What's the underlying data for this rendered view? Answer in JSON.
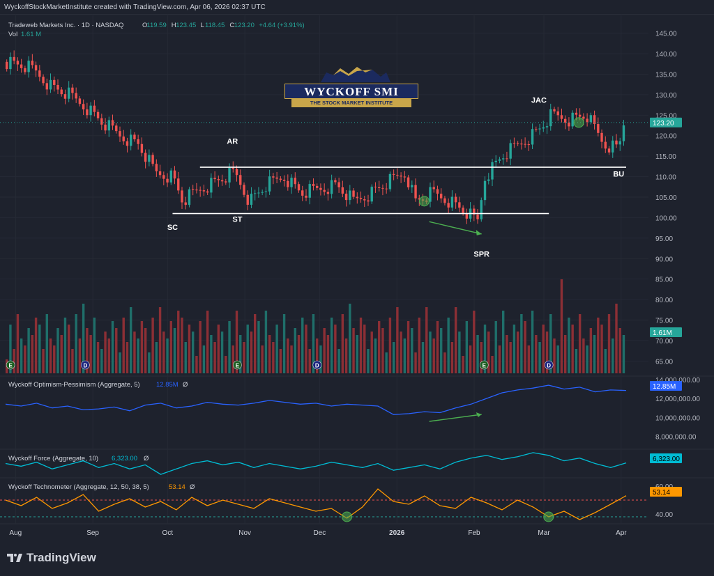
{
  "header": {
    "caption": "WyckoffStockMarketInstitute created with TradingView.com, Apr 06, 2026 02:37 UTC",
    "legend_name": "Tradeweb Markets Inc. · 1D · NASDAQ",
    "ohlc_o_label": "O",
    "ohlc_o": "119.59",
    "ohlc_h_label": "H",
    "ohlc_h": "123.45",
    "ohlc_l_label": "L",
    "ohlc_l": "118.45",
    "ohlc_c_label": "C",
    "ohlc_c": "123.20",
    "change": "+4.64 (+3.91%)",
    "vol_label": "Vol",
    "vol_value": "1.61 M"
  },
  "logo": {
    "title": "WYCKOFF SMI",
    "subtitle": "THE STOCK MARKET INSTITUTE"
  },
  "brand": {
    "name": "TradingView"
  },
  "colors": {
    "background": "#1e222d",
    "grid": "#2a2e39",
    "up": "#26a69a",
    "down": "#ef5350",
    "vol_up": "#1f6f6a",
    "vol_down": "#8c2f35",
    "op_line": "#2962ff",
    "force_line": "#00bcd4",
    "techno_line": "#ff9800",
    "annotation_arrow": "#4caf50",
    "text": "#d1d4dc"
  },
  "chart_data": [
    {
      "type": "candlestick",
      "title": "Tradeweb Markets Inc. · 1D · NASDAQ",
      "ylim": [
        62,
        148
      ],
      "yticks": [
        "145.00",
        "140.00",
        "135.00",
        "130.00",
        "125.00",
        "120.00",
        "115.00",
        "110.00",
        "105.00",
        "100.00",
        "95.00",
        "90.00",
        "85.00",
        "80.00",
        "75.00",
        "70.00",
        "65.00"
      ],
      "last_price_label": "123.20",
      "xticks": [
        "Aug",
        "Sep",
        "Oct",
        "Nov",
        "Dec",
        "2026",
        "Feb",
        "Mar",
        "Apr"
      ],
      "close_path_points": [
        {
          "date": "2025-07-28",
          "close": 138
        },
        {
          "date": "2025-08-04",
          "close": 137
        },
        {
          "date": "2025-08-08",
          "close": 136
        },
        {
          "date": "2025-08-15",
          "close": 132
        },
        {
          "date": "2025-08-22",
          "close": 130
        },
        {
          "date": "2025-08-29",
          "close": 127
        },
        {
          "date": "2025-09-05",
          "close": 123
        },
        {
          "date": "2025-09-12",
          "close": 120
        },
        {
          "date": "2025-09-19",
          "close": 118
        },
        {
          "date": "2025-09-26",
          "close": 111
        },
        {
          "date": "2025-10-03",
          "close": 110
        },
        {
          "date": "2025-10-07",
          "close": 104
        },
        {
          "date": "2025-10-14",
          "close": 107
        },
        {
          "date": "2025-10-21",
          "close": 109
        },
        {
          "date": "2025-10-28",
          "close": 111
        },
        {
          "date": "2025-11-03",
          "close": 104
        },
        {
          "date": "2025-11-10",
          "close": 108
        },
        {
          "date": "2025-11-17",
          "close": 110
        },
        {
          "date": "2025-11-24",
          "close": 106
        },
        {
          "date": "2025-12-01",
          "close": 107
        },
        {
          "date": "2025-12-08",
          "close": 108
        },
        {
          "date": "2025-12-15",
          "close": 104
        },
        {
          "date": "2025-12-22",
          "close": 106
        },
        {
          "date": "2025-12-30",
          "close": 109
        },
        {
          "date": "2026-01-05",
          "close": 111
        },
        {
          "date": "2026-01-09",
          "close": 104
        },
        {
          "date": "2026-01-16",
          "close": 106
        },
        {
          "date": "2026-01-23",
          "close": 104
        },
        {
          "date": "2026-01-30",
          "close": 101
        },
        {
          "date": "2026-02-03",
          "close": 99
        },
        {
          "date": "2026-02-06",
          "close": 110
        },
        {
          "date": "2026-02-13",
          "close": 115
        },
        {
          "date": "2026-02-20",
          "close": 118
        },
        {
          "date": "2026-02-27",
          "close": 121
        },
        {
          "date": "2026-03-05",
          "close": 125
        },
        {
          "date": "2026-03-12",
          "close": 124
        },
        {
          "date": "2026-03-19",
          "close": 125
        },
        {
          "date": "2026-03-26",
          "close": 118
        },
        {
          "date": "2026-04-01",
          "close": 117
        },
        {
          "date": "2026-04-03",
          "close": 123.2
        }
      ],
      "lines": [
        {
          "name": "resistance",
          "value": 112.3,
          "from": "2025-10-14",
          "to": "2026-04-03"
        },
        {
          "name": "support",
          "value": 101.0,
          "from": "2025-10-03",
          "to": "2026-03-03"
        }
      ],
      "annotations": [
        {
          "text": "AR",
          "date": "2025-10-27",
          "value": 118
        },
        {
          "text": "SC",
          "date": "2025-10-03",
          "value": 97
        },
        {
          "text": "ST",
          "date": "2025-10-29",
          "value": 99
        },
        {
          "text": "JAC",
          "date": "2026-02-27",
          "value": 128
        },
        {
          "text": "BU",
          "date": "2026-03-31",
          "value": 110
        },
        {
          "text": "SPR",
          "date": "2026-02-04",
          "value": 90.5
        }
      ],
      "markers": [
        {
          "date": "2026-01-12",
          "value": 104
        },
        {
          "date": "2026-03-15",
          "value": 123.2
        }
      ],
      "volume": {
        "label": "Vol",
        "last_label": "1.61M",
        "event_badges": [
          {
            "text": "E",
            "date": "2025-07-30"
          },
          {
            "text": "D",
            "date": "2025-08-29"
          },
          {
            "text": "E",
            "date": "2025-10-29"
          },
          {
            "text": "D",
            "date": "2025-11-30"
          },
          {
            "text": "E",
            "date": "2026-02-05"
          },
          {
            "text": "D",
            "date": "2026-03-03"
          }
        ]
      }
    },
    {
      "type": "line",
      "title": "Wyckoff Optimism-Pessimism (Aggregate, 5)",
      "value_label": "12.85M",
      "symbol": "Ø",
      "ylim": [
        7000000,
        14000000
      ],
      "yticks": [
        "14,000,000.00",
        "12,000,000.00",
        "10,000,000.00",
        "8,000,000.00"
      ],
      "last_label": "12.85M",
      "series": [
        {
          "values": [
            11.4,
            11.2,
            11.5,
            11.0,
            11.2,
            10.8,
            10.9,
            11.1,
            10.7,
            11.3,
            11.5,
            11.0,
            11.2,
            11.6,
            11.4,
            11.3,
            11.5,
            11.8,
            11.6,
            11.4,
            11.5,
            11.2,
            11.4,
            11.3,
            11.2,
            10.3,
            10.4,
            10.6,
            10.5,
            11.0,
            11.4,
            12.0,
            12.6,
            12.9,
            13.1,
            13.4,
            13.0,
            13.2,
            12.7,
            12.9,
            12.85
          ]
        }
      ]
    },
    {
      "type": "line",
      "title": "Wyckoff Force (Aggregate, 10)",
      "value_label": "6,323.00",
      "symbol": "Ø",
      "last_label": "6,323.00",
      "series": [
        {
          "values": [
            6300,
            6200,
            6350,
            6100,
            6250,
            6400,
            6150,
            6300,
            6100,
            6250,
            5900,
            6100,
            6300,
            6400,
            6250,
            6350,
            6150,
            6300,
            6200,
            6100,
            6200,
            6350,
            6250,
            6150,
            6300,
            6050,
            6150,
            6250,
            6100,
            6350,
            6500,
            6600,
            6450,
            6550,
            6700,
            6600,
            6400,
            6500,
            6300,
            6150,
            6323
          ]
        }
      ]
    },
    {
      "type": "line",
      "title": "Wyckoff Technometer (Aggregate, 12, 50, 38, 5)",
      "value_label": "53.14",
      "symbol": "Ø",
      "ylim": [
        34,
        64
      ],
      "yticks": [
        "60.00",
        "40.00"
      ],
      "last_label": "53.14",
      "thresholds": [
        {
          "name": "overbought",
          "value": 50
        },
        {
          "name": "oversold",
          "value": 38
        }
      ],
      "markers": [
        {
          "index": 22,
          "value": 38
        },
        {
          "index": 35,
          "value": 38
        }
      ],
      "series": [
        {
          "values": [
            50,
            46,
            52,
            44,
            48,
            54,
            42,
            47,
            51,
            45,
            49,
            43,
            52,
            46,
            50,
            47,
            44,
            51,
            48,
            45,
            42,
            44,
            37,
            45,
            58,
            49,
            47,
            53,
            46,
            44,
            52,
            48,
            43,
            50,
            45,
            38,
            42,
            36,
            41,
            47,
            53.14
          ]
        }
      ]
    }
  ]
}
